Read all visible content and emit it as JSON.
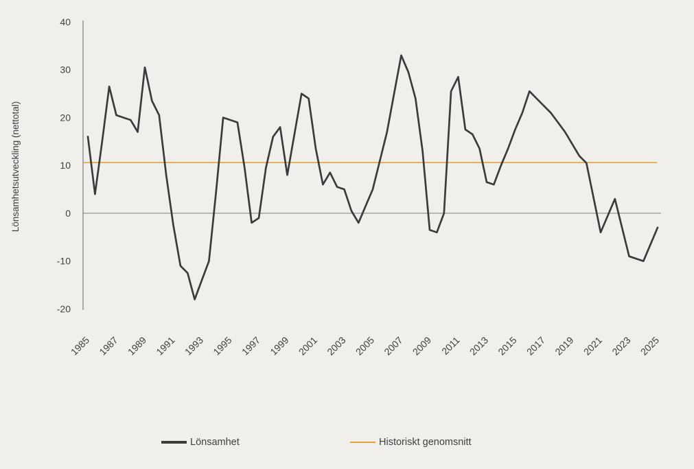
{
  "colors": {
    "background": "#F0EFEC",
    "axis": "#8A8A88",
    "zero_line": "#7F7F7F",
    "text": "#3F3F3F",
    "series_line": "#3B3B3B",
    "average_line": "#E3A437"
  },
  "y_axis": {
    "title": "Lönsamhetsutveckling (nettotal)",
    "ticks": [
      40,
      30,
      20,
      10,
      0,
      -10,
      -20
    ]
  },
  "x_axis": {
    "ticks": [
      1985,
      1987,
      1989,
      1991,
      1993,
      1995,
      1997,
      1999,
      2001,
      2003,
      2005,
      2007,
      2009,
      2011,
      2013,
      2015,
      2017,
      2019,
      2021,
      2023,
      2025
    ]
  },
  "legend": {
    "items": [
      {
        "label": "Lönsamhet",
        "color": "#3B3B3B",
        "thickness": 4
      },
      {
        "label": "Historiskt genomsnitt",
        "color": "#E3A437",
        "thickness": 2
      }
    ]
  },
  "chart_data": {
    "type": "line",
    "title": "",
    "xlabel": "",
    "ylabel": "Lönsamhetsutveckling (nettotal)",
    "ylim": [
      -20,
      40
    ],
    "xlim": [
      1985,
      2025
    ],
    "grid": "zero baseline only",
    "legend_position": "bottom",
    "sampling_note": "approx. semi-annual points 1985-2020, annual 2021-2025 (values estimated from pixels)",
    "series": [
      {
        "name": "Lönsamhet",
        "color": "#3B3B3B",
        "points": [
          [
            1985.0,
            16
          ],
          [
            1985.5,
            4
          ],
          [
            1986.0,
            15
          ],
          [
            1986.5,
            26.5
          ],
          [
            1987.0,
            20.5
          ],
          [
            1987.5,
            20
          ],
          [
            1988.0,
            19.5
          ],
          [
            1988.5,
            17
          ],
          [
            1989.0,
            30.5
          ],
          [
            1989.5,
            23.5
          ],
          [
            1990.0,
            20.5
          ],
          [
            1990.5,
            8
          ],
          [
            1991.0,
            -2.5
          ],
          [
            1991.5,
            -11
          ],
          [
            1992.0,
            -12.5
          ],
          [
            1992.5,
            -18
          ],
          [
            1993.0,
            -14
          ],
          [
            1993.5,
            -10
          ],
          [
            1994.0,
            4.5
          ],
          [
            1994.5,
            20
          ],
          [
            1995.0,
            19.5
          ],
          [
            1995.5,
            19
          ],
          [
            1996.0,
            9.5
          ],
          [
            1996.5,
            -2
          ],
          [
            1997.0,
            -1
          ],
          [
            1997.5,
            9.5
          ],
          [
            1998.0,
            16
          ],
          [
            1998.5,
            18
          ],
          [
            1999.0,
            8
          ],
          [
            1999.5,
            16.5
          ],
          [
            2000.0,
            25
          ],
          [
            2000.5,
            24
          ],
          [
            2001.0,
            13.5
          ],
          [
            2001.5,
            6
          ],
          [
            2002.0,
            8.5
          ],
          [
            2002.5,
            5.5
          ],
          [
            2003.0,
            5
          ],
          [
            2003.5,
            0.5
          ],
          [
            2004.0,
            -2
          ],
          [
            2004.5,
            1.5
          ],
          [
            2005.0,
            5
          ],
          [
            2005.5,
            11
          ],
          [
            2006.0,
            17
          ],
          [
            2006.5,
            25
          ],
          [
            2007.0,
            33
          ],
          [
            2007.5,
            29.5
          ],
          [
            2008.0,
            24
          ],
          [
            2008.5,
            13
          ],
          [
            2009.0,
            -3.5
          ],
          [
            2009.5,
            -4
          ],
          [
            2010.0,
            0
          ],
          [
            2010.5,
            25.5
          ],
          [
            2011.0,
            28.5
          ],
          [
            2011.5,
            17.5
          ],
          [
            2012.0,
            16.5
          ],
          [
            2012.5,
            13.5
          ],
          [
            2013.0,
            6.5
          ],
          [
            2013.5,
            6
          ],
          [
            2014.0,
            10
          ],
          [
            2014.5,
            13.5
          ],
          [
            2015.0,
            17.5
          ],
          [
            2015.5,
            21
          ],
          [
            2016.0,
            25.5
          ],
          [
            2016.5,
            24
          ],
          [
            2017.0,
            22.5
          ],
          [
            2017.5,
            21
          ],
          [
            2018.0,
            19
          ],
          [
            2018.5,
            17
          ],
          [
            2019.0,
            14.5
          ],
          [
            2019.5,
            12
          ],
          [
            2020.0,
            10.5
          ],
          [
            2021.0,
            -4
          ],
          [
            2022.0,
            3
          ],
          [
            2023.0,
            -9
          ],
          [
            2024.0,
            -10
          ],
          [
            2025.0,
            -3
          ]
        ]
      },
      {
        "name": "Historiskt genomsnitt",
        "color": "#E3A437",
        "style": "constant",
        "value": 10.6
      }
    ]
  }
}
